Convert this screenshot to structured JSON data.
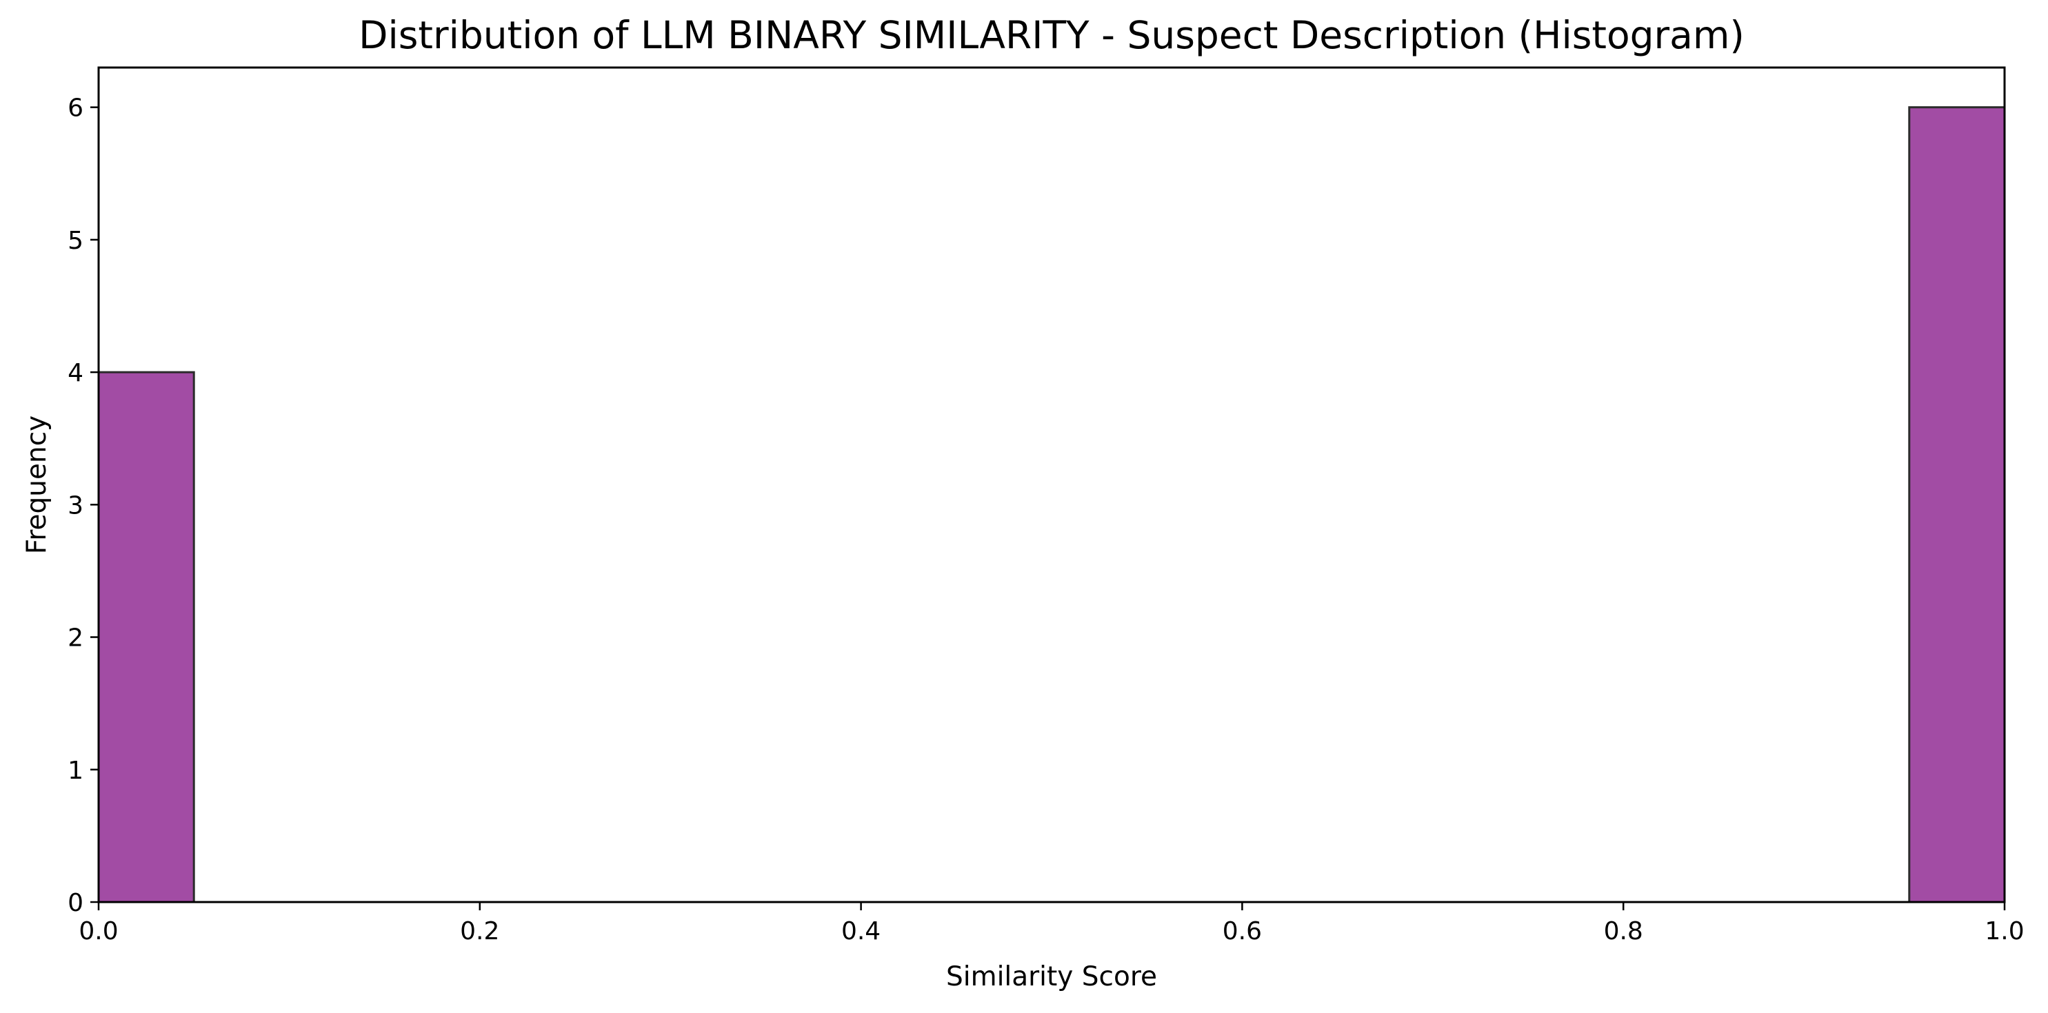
{
  "chart_data": {
    "type": "bar",
    "title": "Distribution of LLM BINARY SIMILARITY - Suspect Description (Histogram)",
    "xlabel": "Similarity Score",
    "ylabel": "Frequency",
    "xlim": [
      0,
      1
    ],
    "ylim": [
      0,
      6.3
    ],
    "xticks": [
      "0.0",
      "0.2",
      "0.4",
      "0.6",
      "0.8",
      "1.0"
    ],
    "yticks": [
      "0",
      "1",
      "2",
      "3",
      "4",
      "5",
      "6"
    ],
    "bins": [
      {
        "x0": 0.0,
        "x1": 0.05,
        "value": 4
      },
      {
        "x0": 0.95,
        "x1": 1.0,
        "value": 6
      }
    ],
    "bar_color": "#a24ca4",
    "bar_edge_color": "#2b2b2b",
    "grid": false,
    "legend": "none"
  }
}
